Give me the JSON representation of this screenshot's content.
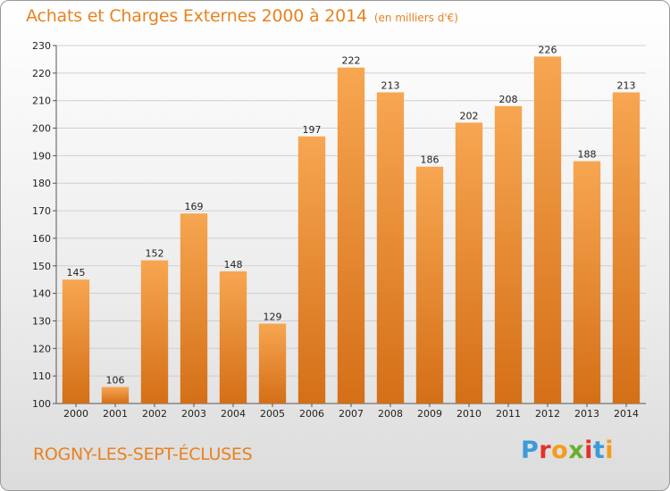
{
  "header": {
    "title": "Achats et Charges Externes 2000 à 2014",
    "unit": "(en milliers d'€)"
  },
  "footer": {
    "commune": "ROGNY-LES-SEPT-ÉCLUSES",
    "logo_letters": [
      "P",
      "r",
      "o",
      "x",
      "i",
      "t",
      "i"
    ],
    "logo_colors": [
      "#3b9bd6",
      "#e4312b",
      "#f39c1c",
      "#6aae2e",
      "#e4312b",
      "#3b9bd6",
      "#f39c1c"
    ]
  },
  "colors": {
    "bar_light": "#f7a651",
    "bar_dark": "#d46f17",
    "text_accent": "#e8821e",
    "grid": "#cfcfcf"
  },
  "chart_data": {
    "type": "bar",
    "title": "Achats et Charges Externes 2000 à 2014",
    "subtitle": "(en milliers d'€)",
    "xlabel": "",
    "ylabel": "",
    "categories": [
      "2000",
      "2001",
      "2002",
      "2003",
      "2004",
      "2005",
      "2006",
      "2007",
      "2008",
      "2009",
      "2010",
      "2011",
      "2012",
      "2013",
      "2014"
    ],
    "values": [
      145,
      106,
      152,
      169,
      148,
      129,
      197,
      222,
      213,
      186,
      202,
      208,
      226,
      188,
      213
    ],
    "ylim": [
      100,
      230
    ],
    "yticks": [
      100,
      110,
      120,
      130,
      140,
      150,
      160,
      170,
      180,
      190,
      200,
      210,
      220,
      230
    ],
    "grid": true,
    "legend": "none"
  }
}
